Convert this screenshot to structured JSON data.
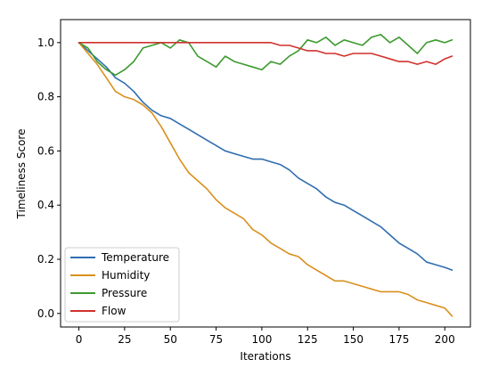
{
  "chart_data": {
    "type": "line",
    "xlabel": "Iterations",
    "ylabel": "Timeliness Score",
    "xlim": [
      -10,
      214
    ],
    "ylim": [
      -0.05,
      1.085
    ],
    "x_ticks": [
      0,
      25,
      50,
      75,
      100,
      125,
      150,
      175,
      200
    ],
    "y_ticks": [
      0.0,
      0.2,
      0.4,
      0.6,
      0.8,
      1.0
    ],
    "x_tick_labels": [
      "0",
      "25",
      "50",
      "75",
      "100",
      "125",
      "150",
      "175",
      "200"
    ],
    "y_tick_labels": [
      "0.0",
      "0.2",
      "0.4",
      "0.6",
      "0.8",
      "1.0"
    ],
    "grid": false,
    "legend_position": "lower-left",
    "series": [
      {
        "name": "Temperature",
        "color": "#2f6db0",
        "x": [
          0,
          5,
          10,
          15,
          20,
          25,
          30,
          35,
          40,
          45,
          50,
          55,
          60,
          65,
          70,
          75,
          80,
          85,
          90,
          95,
          100,
          105,
          110,
          115,
          120,
          125,
          130,
          135,
          140,
          145,
          150,
          155,
          160,
          165,
          170,
          175,
          180,
          185,
          190,
          195,
          200,
          204
        ],
        "values": [
          1.0,
          0.97,
          0.94,
          0.91,
          0.87,
          0.85,
          0.82,
          0.78,
          0.75,
          0.73,
          0.72,
          0.7,
          0.68,
          0.66,
          0.64,
          0.62,
          0.6,
          0.59,
          0.58,
          0.57,
          0.57,
          0.56,
          0.55,
          0.53,
          0.5,
          0.48,
          0.46,
          0.43,
          0.41,
          0.4,
          0.38,
          0.36,
          0.34,
          0.32,
          0.29,
          0.26,
          0.24,
          0.22,
          0.19,
          0.18,
          0.17,
          0.16
        ]
      },
      {
        "name": "Humidity",
        "color": "#d9901e",
        "x": [
          0,
          5,
          10,
          15,
          20,
          25,
          30,
          35,
          40,
          45,
          50,
          55,
          60,
          65,
          70,
          75,
          80,
          85,
          90,
          95,
          100,
          105,
          110,
          115,
          120,
          125,
          130,
          135,
          140,
          145,
          150,
          155,
          160,
          165,
          170,
          175,
          180,
          185,
          190,
          195,
          200,
          204
        ],
        "values": [
          1.0,
          0.96,
          0.92,
          0.87,
          0.82,
          0.8,
          0.79,
          0.77,
          0.74,
          0.69,
          0.63,
          0.57,
          0.52,
          0.49,
          0.46,
          0.42,
          0.39,
          0.37,
          0.35,
          0.31,
          0.29,
          0.26,
          0.24,
          0.22,
          0.21,
          0.18,
          0.16,
          0.14,
          0.12,
          0.12,
          0.11,
          0.1,
          0.09,
          0.08,
          0.08,
          0.08,
          0.07,
          0.05,
          0.04,
          0.03,
          0.02,
          -0.01
        ]
      },
      {
        "name": "Pressure",
        "color": "#3c9a2e",
        "x": [
          0,
          5,
          10,
          15,
          20,
          25,
          30,
          35,
          40,
          45,
          50,
          55,
          60,
          65,
          70,
          75,
          80,
          85,
          90,
          95,
          100,
          105,
          110,
          115,
          120,
          125,
          130,
          135,
          140,
          145,
          150,
          155,
          160,
          165,
          170,
          175,
          180,
          185,
          190,
          195,
          200,
          204
        ],
        "values": [
          1.0,
          0.98,
          0.93,
          0.9,
          0.88,
          0.9,
          0.93,
          0.98,
          0.99,
          1.0,
          0.98,
          1.01,
          1.0,
          0.95,
          0.93,
          0.91,
          0.95,
          0.93,
          0.92,
          0.91,
          0.9,
          0.93,
          0.92,
          0.95,
          0.97,
          1.01,
          1.0,
          1.02,
          0.99,
          1.01,
          1.0,
          0.99,
          1.02,
          1.03,
          1.0,
          1.02,
          0.99,
          0.96,
          1.0,
          1.01,
          1.0,
          1.01
        ]
      },
      {
        "name": "Flow",
        "color": "#d0312d",
        "x": [
          0,
          5,
          10,
          15,
          20,
          25,
          30,
          35,
          40,
          45,
          50,
          55,
          60,
          65,
          70,
          75,
          80,
          85,
          90,
          95,
          100,
          105,
          110,
          115,
          120,
          125,
          130,
          135,
          140,
          145,
          150,
          155,
          160,
          165,
          170,
          175,
          180,
          185,
          190,
          195,
          200,
          204
        ],
        "values": [
          1.0,
          1.0,
          1.0,
          1.0,
          1.0,
          1.0,
          1.0,
          1.0,
          1.0,
          1.0,
          1.0,
          1.0,
          1.0,
          1.0,
          1.0,
          1.0,
          1.0,
          1.0,
          1.0,
          1.0,
          1.0,
          1.0,
          0.99,
          0.99,
          0.98,
          0.97,
          0.97,
          0.96,
          0.96,
          0.95,
          0.96,
          0.96,
          0.96,
          0.95,
          0.94,
          0.93,
          0.93,
          0.92,
          0.93,
          0.92,
          0.94,
          0.95
        ]
      }
    ]
  }
}
